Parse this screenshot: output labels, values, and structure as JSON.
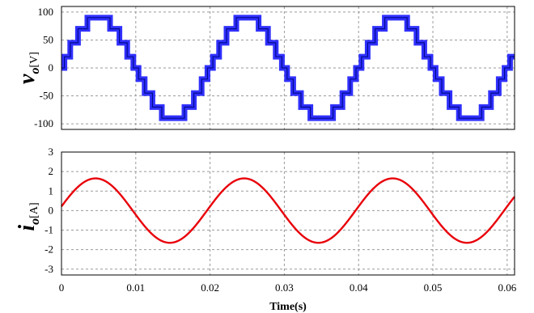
{
  "chart_data": [
    {
      "type": "line",
      "id": "voltage",
      "ylabel": {
        "symbol": "v",
        "subscript": "o",
        "unit": "[V]"
      },
      "xlim": [
        0,
        0.061
      ],
      "ylim": [
        -110,
        110
      ],
      "yticks": [
        100,
        50,
        0,
        -50,
        -100
      ],
      "xticks": [
        0,
        0.01,
        0.02,
        0.03,
        0.04,
        0.05,
        0.06
      ],
      "grid": true,
      "series": [
        {
          "color": "#1a1aff",
          "waveform": "stepped-sine",
          "amplitude": 90,
          "frequency_hz": 50,
          "levels": [
            -90,
            -70,
            -45,
            -20,
            0,
            20,
            45,
            70,
            90
          ]
        }
      ]
    },
    {
      "type": "line",
      "id": "current",
      "ylabel": {
        "symbol": "i",
        "subscript": "o",
        "unit": "[A]"
      },
      "xlabel": "Time(s)",
      "xlim": [
        0,
        0.061
      ],
      "ylim": [
        -3.3,
        3.0
      ],
      "yticks": [
        3,
        2,
        1,
        0,
        -1,
        -2,
        -3
      ],
      "xticks": [
        0,
        0.01,
        0.02,
        0.03,
        0.04,
        0.05,
        0.06
      ],
      "xticklabels": [
        "0",
        "0.01",
        "0.02",
        "0.03",
        "0.04",
        "0.05",
        "0.06"
      ],
      "grid": true,
      "series": [
        {
          "color": "#e8000a",
          "waveform": "sine",
          "amplitude": 1.65,
          "frequency_hz": 50,
          "phase_rad": 0.13
        }
      ]
    }
  ]
}
